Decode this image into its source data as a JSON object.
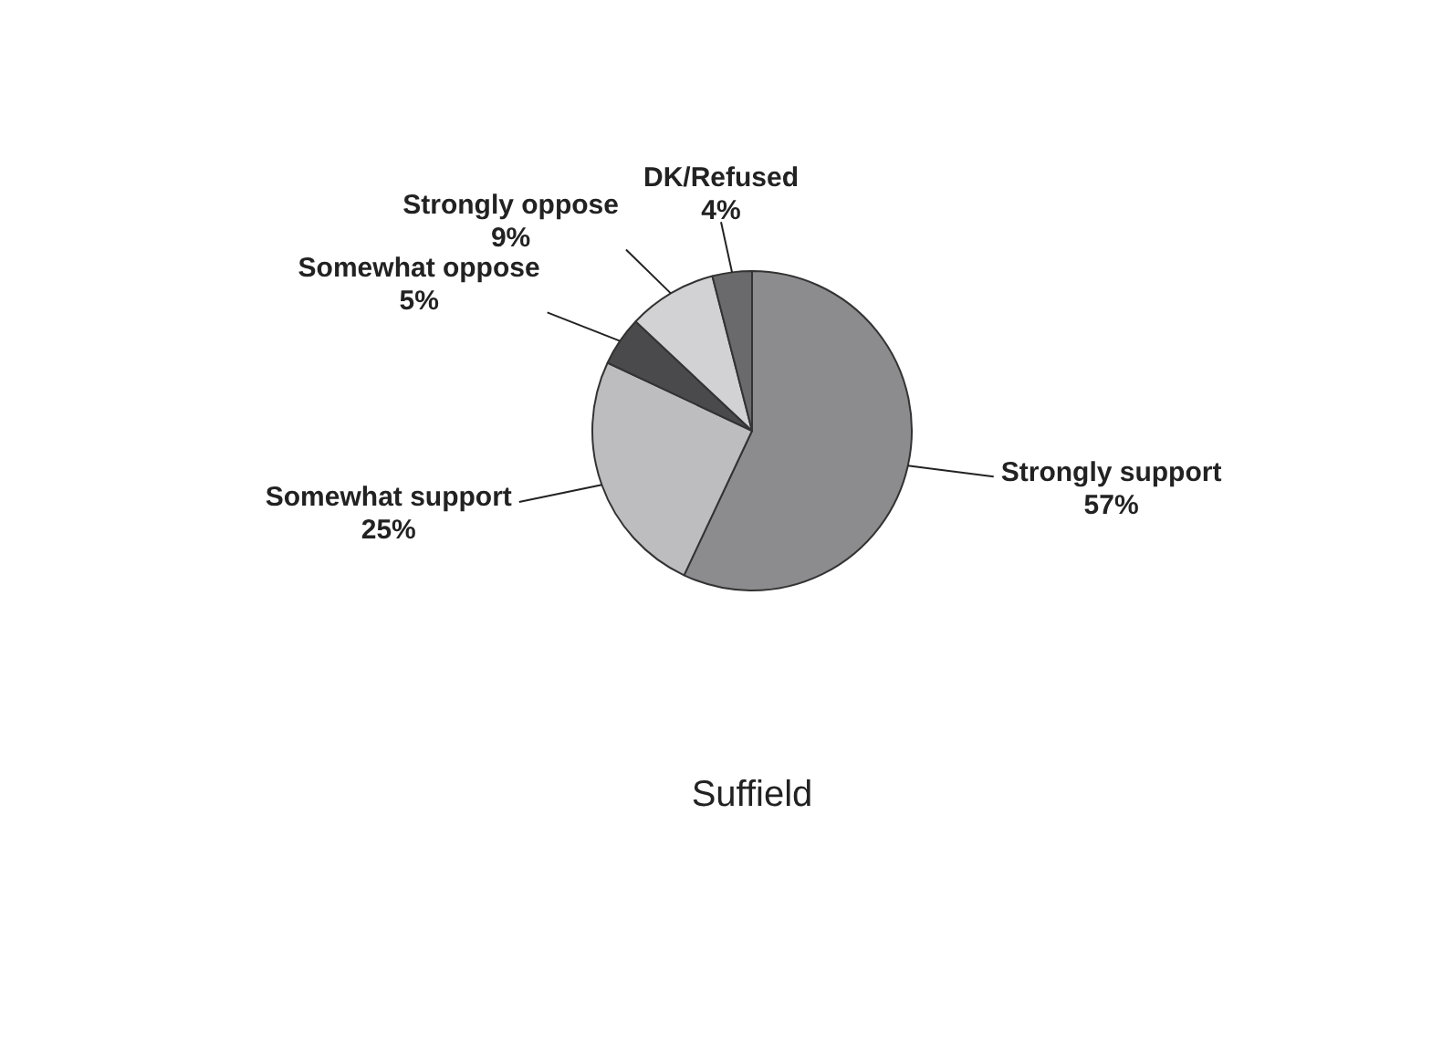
{
  "chart_data": {
    "type": "pie",
    "title": "Suffield",
    "categories": [
      "Strongly support",
      "Somewhat support",
      "Somewhat oppose",
      "Strongly oppose",
      "DK/Refused"
    ],
    "values": [
      57,
      25,
      5,
      9,
      4
    ],
    "value_labels": [
      "57%",
      "25%",
      "5%",
      "9%",
      "4%"
    ],
    "colors": [
      "#8c8c8e",
      "#bdbdbf",
      "#4a4a4c",
      "#d2d2d4",
      "#6a6a6c"
    ],
    "legend": false
  }
}
